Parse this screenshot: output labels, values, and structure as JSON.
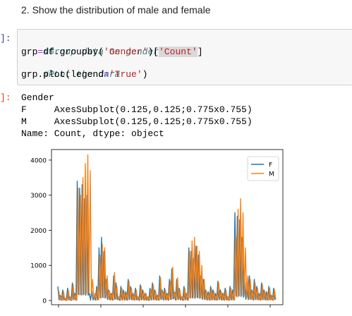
{
  "markdown": {
    "heading": "2. Show the distribution of male and female"
  },
  "input_cell": {
    "prompt": "]:",
    "lines": {
      "c1": "#Group data on gender",
      "l2a": "grp",
      "l2b": "=",
      "l2c": "df.groupby(",
      "l2d": "'Gender'",
      "l2e": ")[",
      "l2f": "'Count'",
      "l2g": "]",
      "c3": "#PLot the dara",
      "l4a": "grp.plot(legend",
      "l4b": "=",
      "l4c": "'True'",
      "l4d": ")"
    }
  },
  "output_cell": {
    "prompt": "]:",
    "lines": [
      "Gender",
      "F     AxesSubplot(0.125,0.125;0.775x0.755)",
      "M     AxesSubplot(0.125,0.125;0.775x0.755)",
      "Name: Count, dtype: object"
    ]
  },
  "chart_data": {
    "type": "line",
    "title": "",
    "xlabel": "",
    "ylabel": "",
    "ylim": [
      0,
      4300
    ],
    "yticks": [
      "0",
      "1000",
      "2000",
      "3000",
      "4000"
    ],
    "legend_position": "top-right",
    "grid": false,
    "series": [
      {
        "name": "F",
        "color": "#1f77b4",
        "values": [
          400,
          150,
          300,
          60,
          350,
          100,
          500,
          200,
          3400,
          3200,
          3300,
          2900,
          3000,
          200,
          300,
          150,
          400,
          1500,
          1800,
          1400,
          600,
          300,
          200,
          700,
          500,
          100,
          400,
          300,
          250,
          600,
          400,
          200,
          350,
          100,
          450,
          300,
          200,
          100,
          350,
          500,
          300,
          150,
          700,
          300,
          350,
          200,
          600,
          900,
          250,
          600,
          350,
          100,
          400,
          200,
          1500,
          1400,
          1200,
          1550,
          1300,
          700,
          600,
          300,
          250,
          400,
          300,
          200,
          550,
          300,
          200,
          350,
          100,
          400,
          300,
          2500,
          2400,
          2300,
          1800,
          600,
          500,
          700,
          300,
          600,
          400,
          200,
          500,
          300,
          250,
          400,
          150,
          350
        ]
      },
      {
        "name": "M",
        "color": "#ff7f0e",
        "values": [
          300,
          100,
          250,
          50,
          300,
          80,
          450,
          150,
          3200,
          3000,
          3500,
          3900,
          4150,
          3700,
          600,
          200,
          350,
          1300,
          1600,
          1500,
          700,
          250,
          200,
          800,
          400,
          100,
          350,
          250,
          200,
          550,
          350,
          150,
          300,
          100,
          400,
          250,
          200,
          100,
          300,
          450,
          250,
          120,
          650,
          250,
          300,
          180,
          550,
          950,
          220,
          650,
          300,
          100,
          350,
          200,
          1400,
          1700,
          1800,
          1550,
          1400,
          1000,
          600,
          250,
          200,
          350,
          250,
          150,
          500,
          250,
          200,
          300,
          100,
          350,
          250,
          1800,
          2600,
          2900,
          2500,
          1500,
          700,
          600,
          250,
          500,
          350,
          150,
          450,
          250,
          200,
          350,
          100,
          300
        ]
      }
    ]
  }
}
